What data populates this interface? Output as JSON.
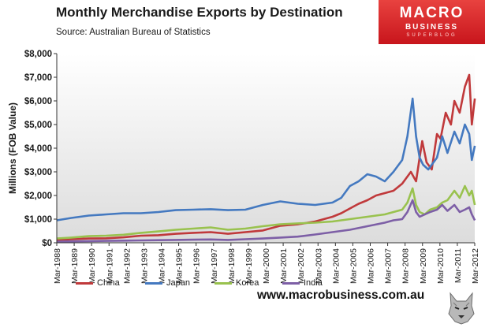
{
  "title": "Monthly Merchandise Exports by Destination",
  "subtitle": "Source:  Australian Bureau of Statistics",
  "logo": {
    "line1": "MACRO",
    "line2": "BUSINESS",
    "line3": "SUPERBLOG"
  },
  "website": "www.macrobusiness.com.au",
  "colors": {
    "china": "#c0393b",
    "japan": "#4479c0",
    "korea": "#99c24e",
    "india": "#7d5fa6",
    "plot_bg_top": "#ffffff",
    "plot_bg_bottom": "#dcdcdc"
  },
  "chart_data": {
    "type": "line",
    "title": "Monthly Merchandise Exports by Destination",
    "subtitle": "Source:  Australian Bureau of Statistics",
    "ylabel": "Millions (FOB Value)",
    "xlabel": "",
    "ylim": [
      0,
      8000
    ],
    "yticks": [
      "$0",
      "$1,000",
      "$2,000",
      "$3,000",
      "$4,000",
      "$5,000",
      "$6,000",
      "$7,000",
      "$8,000"
    ],
    "xticks": [
      "Mar-1988",
      "Mar-1989",
      "Mar-1990",
      "Mar-1991",
      "Mar-1992",
      "Mar-1993",
      "Mar-1994",
      "Mar-1995",
      "Mar-1996",
      "Mar-1997",
      "Mar-1998",
      "Mar-1999",
      "Mar-2000",
      "Mar-2001",
      "Mar-2002",
      "Mar-2003",
      "Mar-2004",
      "Mar-2005",
      "Mar-2006",
      "Mar-2007",
      "Mar-2008",
      "Mar-2009",
      "Mar-2010",
      "Mar-2011",
      "Mar-2012"
    ],
    "x_start": 1988.167,
    "x_end": 2012.167,
    "grid": false,
    "legend": "bottom",
    "series": [
      {
        "name": "China",
        "color": "#c0393b",
        "x": [
          1988.17,
          1989,
          1990,
          1991,
          1992,
          1993,
          1994,
          1995,
          1996,
          1997,
          1998,
          1999,
          2000,
          2001,
          2002,
          2003,
          2004,
          2004.5,
          2005,
          2005.5,
          2006,
          2006.5,
          2007,
          2007.5,
          2008,
          2008.5,
          2008.8,
          2009,
          2009.15,
          2009.4,
          2009.7,
          2010,
          2010.2,
          2010.5,
          2010.8,
          2011,
          2011.3,
          2011.6,
          2011.85,
          2012,
          2012.17
        ],
        "y": [
          120,
          150,
          180,
          190,
          230,
          300,
          320,
          380,
          420,
          450,
          380,
          450,
          520,
          720,
          780,
          900,
          1100,
          1250,
          1450,
          1650,
          1800,
          2000,
          2100,
          2200,
          2500,
          3000,
          2600,
          3600,
          4300,
          3400,
          3100,
          4600,
          4400,
          5500,
          5000,
          6000,
          5500,
          6600,
          7100,
          5000,
          6100
        ]
      },
      {
        "name": "Japan",
        "color": "#4479c0",
        "x": [
          1988.17,
          1989,
          1990,
          1991,
          1992,
          1993,
          1994,
          1995,
          1996,
          1997,
          1998,
          1999,
          2000,
          2001,
          2002,
          2003,
          2004,
          2004.5,
          2005,
          2005.5,
          2006,
          2006.5,
          2007,
          2007.5,
          2008,
          2008.3,
          2008.6,
          2008.8,
          2009,
          2009.2,
          2009.5,
          2010,
          2010.3,
          2010.6,
          2011,
          2011.3,
          2011.6,
          2011.85,
          2012,
          2012.17
        ],
        "y": [
          950,
          1050,
          1150,
          1200,
          1250,
          1250,
          1300,
          1380,
          1400,
          1420,
          1380,
          1400,
          1600,
          1750,
          1650,
          1600,
          1700,
          1900,
          2400,
          2600,
          2900,
          2800,
          2600,
          3000,
          3500,
          4500,
          6100,
          4500,
          3600,
          3300,
          3100,
          3600,
          4500,
          3800,
          4700,
          4200,
          5000,
          4600,
          3500,
          4100
        ]
      },
      {
        "name": "Korea",
        "color": "#99c24e",
        "x": [
          1988.17,
          1989,
          1990,
          1991,
          1992,
          1993,
          1994,
          1995,
          1996,
          1997,
          1998,
          1999,
          2000,
          2001,
          2002,
          2003,
          2004,
          2005,
          2006,
          2007,
          2007.5,
          2008,
          2008.3,
          2008.6,
          2008.8,
          2009,
          2009.3,
          2009.6,
          2010,
          2010.3,
          2010.6,
          2011,
          2011.3,
          2011.6,
          2011.85,
          2012,
          2012.17
        ],
        "y": [
          180,
          220,
          280,
          300,
          340,
          420,
          480,
          550,
          600,
          650,
          550,
          600,
          700,
          780,
          820,
          850,
          900,
          1000,
          1100,
          1200,
          1300,
          1400,
          1700,
          2300,
          1600,
          1300,
          1200,
          1400,
          1500,
          1700,
          1800,
          2200,
          1900,
          2400,
          2000,
          2200,
          1600
        ]
      },
      {
        "name": "India",
        "color": "#7d5fa6",
        "x": [
          1988.17,
          1989,
          1990,
          1991,
          1992,
          1993,
          1994,
          1995,
          1996,
          1997,
          1998,
          1999,
          2000,
          2001,
          2002,
          2003,
          2004,
          2005,
          2006,
          2007,
          2007.5,
          2008,
          2008.3,
          2008.6,
          2008.8,
          2009,
          2009.3,
          2009.6,
          2010,
          2010.3,
          2010.6,
          2011,
          2011.3,
          2011.6,
          2011.85,
          2012,
          2012.17
        ],
        "y": [
          50,
          60,
          70,
          80,
          90,
          100,
          110,
          120,
          130,
          140,
          120,
          150,
          180,
          220,
          260,
          350,
          450,
          550,
          700,
          850,
          950,
          1000,
          1300,
          1800,
          1300,
          1100,
          1200,
          1300,
          1400,
          1600,
          1350,
          1600,
          1300,
          1400,
          1500,
          1200,
          950
        ]
      }
    ]
  }
}
